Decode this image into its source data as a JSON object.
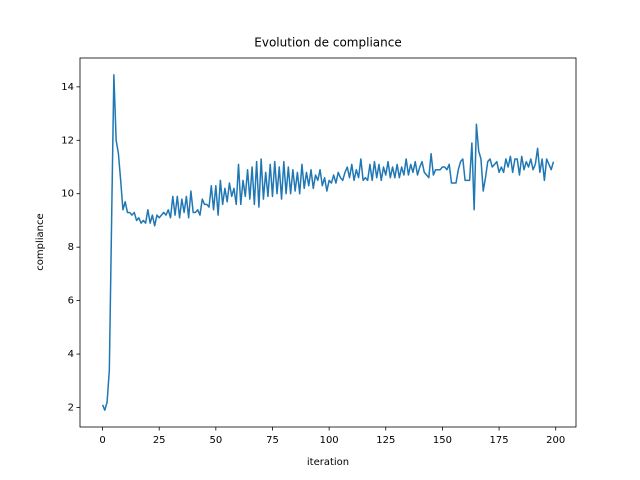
{
  "chart_data": {
    "type": "line",
    "title": "Evolution de compliance",
    "x_label": "iteration",
    "y_label": "compliance",
    "x": [
      0,
      1,
      2,
      3,
      4,
      5,
      6,
      7,
      8,
      9,
      10,
      11,
      12,
      13,
      14,
      15,
      16,
      17,
      18,
      19,
      20,
      21,
      22,
      23,
      24,
      25,
      26,
      27,
      28,
      29,
      30,
      31,
      32,
      33,
      34,
      35,
      36,
      37,
      38,
      39,
      40,
      41,
      42,
      43,
      44,
      45,
      46,
      47,
      48,
      49,
      50,
      51,
      52,
      53,
      54,
      55,
      56,
      57,
      58,
      59,
      60,
      61,
      62,
      63,
      64,
      65,
      66,
      67,
      68,
      69,
      70,
      71,
      72,
      73,
      74,
      75,
      76,
      77,
      78,
      79,
      80,
      81,
      82,
      83,
      84,
      85,
      86,
      87,
      88,
      89,
      90,
      91,
      92,
      93,
      94,
      95,
      96,
      97,
      98,
      99,
      100,
      101,
      102,
      103,
      104,
      105,
      106,
      107,
      108,
      109,
      110,
      111,
      112,
      113,
      114,
      115,
      116,
      117,
      118,
      119,
      120,
      121,
      122,
      123,
      124,
      125,
      126,
      127,
      128,
      129,
      130,
      131,
      132,
      133,
      134,
      135,
      136,
      137,
      138,
      139,
      140,
      141,
      142,
      143,
      144,
      145,
      146,
      147,
      148,
      149,
      150,
      151,
      152,
      153,
      154,
      155,
      156,
      157,
      158,
      159,
      160,
      161,
      162,
      163,
      164,
      165,
      166,
      167,
      168,
      169,
      170,
      171,
      172,
      173,
      174,
      175,
      176,
      177,
      178,
      179,
      180,
      181,
      182,
      183,
      184,
      185,
      186,
      187,
      188,
      189,
      190,
      191,
      192,
      193,
      194,
      195,
      196,
      197,
      198,
      199
    ],
    "series": [
      {
        "color": "#1f77b4",
        "values": [
          2.1,
          1.9,
          2.2,
          3.4,
          9.0,
          14.45,
          12.0,
          11.5,
          10.5,
          9.4,
          9.7,
          9.3,
          9.3,
          9.2,
          9.3,
          9.0,
          9.1,
          8.9,
          9.0,
          8.9,
          9.4,
          8.9,
          9.2,
          8.8,
          9.2,
          9.1,
          9.2,
          9.3,
          9.2,
          9.4,
          9.1,
          9.9,
          9.2,
          9.9,
          9.1,
          9.8,
          9.3,
          9.9,
          9.1,
          10.1,
          9.3,
          9.3,
          9.4,
          9.2,
          9.8,
          9.6,
          9.6,
          9.5,
          10.3,
          9.4,
          10.3,
          9.2,
          10.5,
          9.6,
          10.2,
          9.7,
          10.4,
          9.9,
          10.2,
          9.6,
          11.1,
          9.6,
          10.5,
          9.9,
          10.9,
          9.8,
          11.0,
          9.6,
          11.2,
          9.5,
          11.3,
          9.8,
          10.8,
          9.9,
          11.1,
          9.9,
          11.2,
          10.0,
          11.0,
          9.8,
          11.2,
          10.0,
          11.0,
          10.0,
          10.9,
          10.1,
          10.8,
          10.0,
          11.1,
          10.2,
          10.8,
          10.3,
          10.9,
          10.2,
          10.7,
          10.5,
          10.9,
          10.3,
          10.6,
          10.1,
          10.5,
          10.4,
          10.7,
          10.4,
          10.8,
          10.6,
          10.5,
          10.8,
          11.0,
          10.6,
          11.1,
          10.5,
          10.9,
          10.6,
          11.3,
          10.5,
          10.6,
          10.5,
          11.1,
          10.5,
          11.2,
          10.6,
          11.1,
          10.5,
          11.0,
          10.7,
          11.2,
          10.6,
          11.0,
          10.6,
          11.1,
          10.6,
          11.0,
          10.7,
          11.3,
          10.7,
          11.1,
          10.8,
          11.2,
          10.7,
          11.0,
          11.2,
          10.8,
          10.7,
          10.6,
          11.5,
          10.7,
          10.9,
          10.9,
          10.9,
          11.0,
          11.0,
          10.9,
          11.1,
          10.4,
          10.4,
          10.4,
          10.9,
          11.2,
          11.3,
          10.5,
          10.5,
          10.5,
          11.9,
          9.4,
          12.6,
          11.6,
          11.3,
          10.1,
          10.6,
          11.2,
          11.3,
          11.0,
          11.1,
          11.2,
          10.8,
          11.0,
          10.8,
          11.3,
          11.0,
          11.4,
          10.8,
          11.3,
          11.3,
          10.7,
          11.4,
          10.9,
          11.2,
          11.0,
          11.3,
          10.9,
          11.1,
          11.7,
          10.8,
          11.3,
          10.5,
          11.3,
          11.1,
          10.9,
          11.2
        ]
      }
    ],
    "xlim": [
      -9.95,
      208.95
    ],
    "ylim": [
      1.27,
      15.08
    ],
    "xticks": [
      0,
      25,
      50,
      75,
      100,
      125,
      150,
      175,
      200
    ],
    "yticks": [
      2,
      4,
      6,
      8,
      10,
      12,
      14
    ]
  }
}
